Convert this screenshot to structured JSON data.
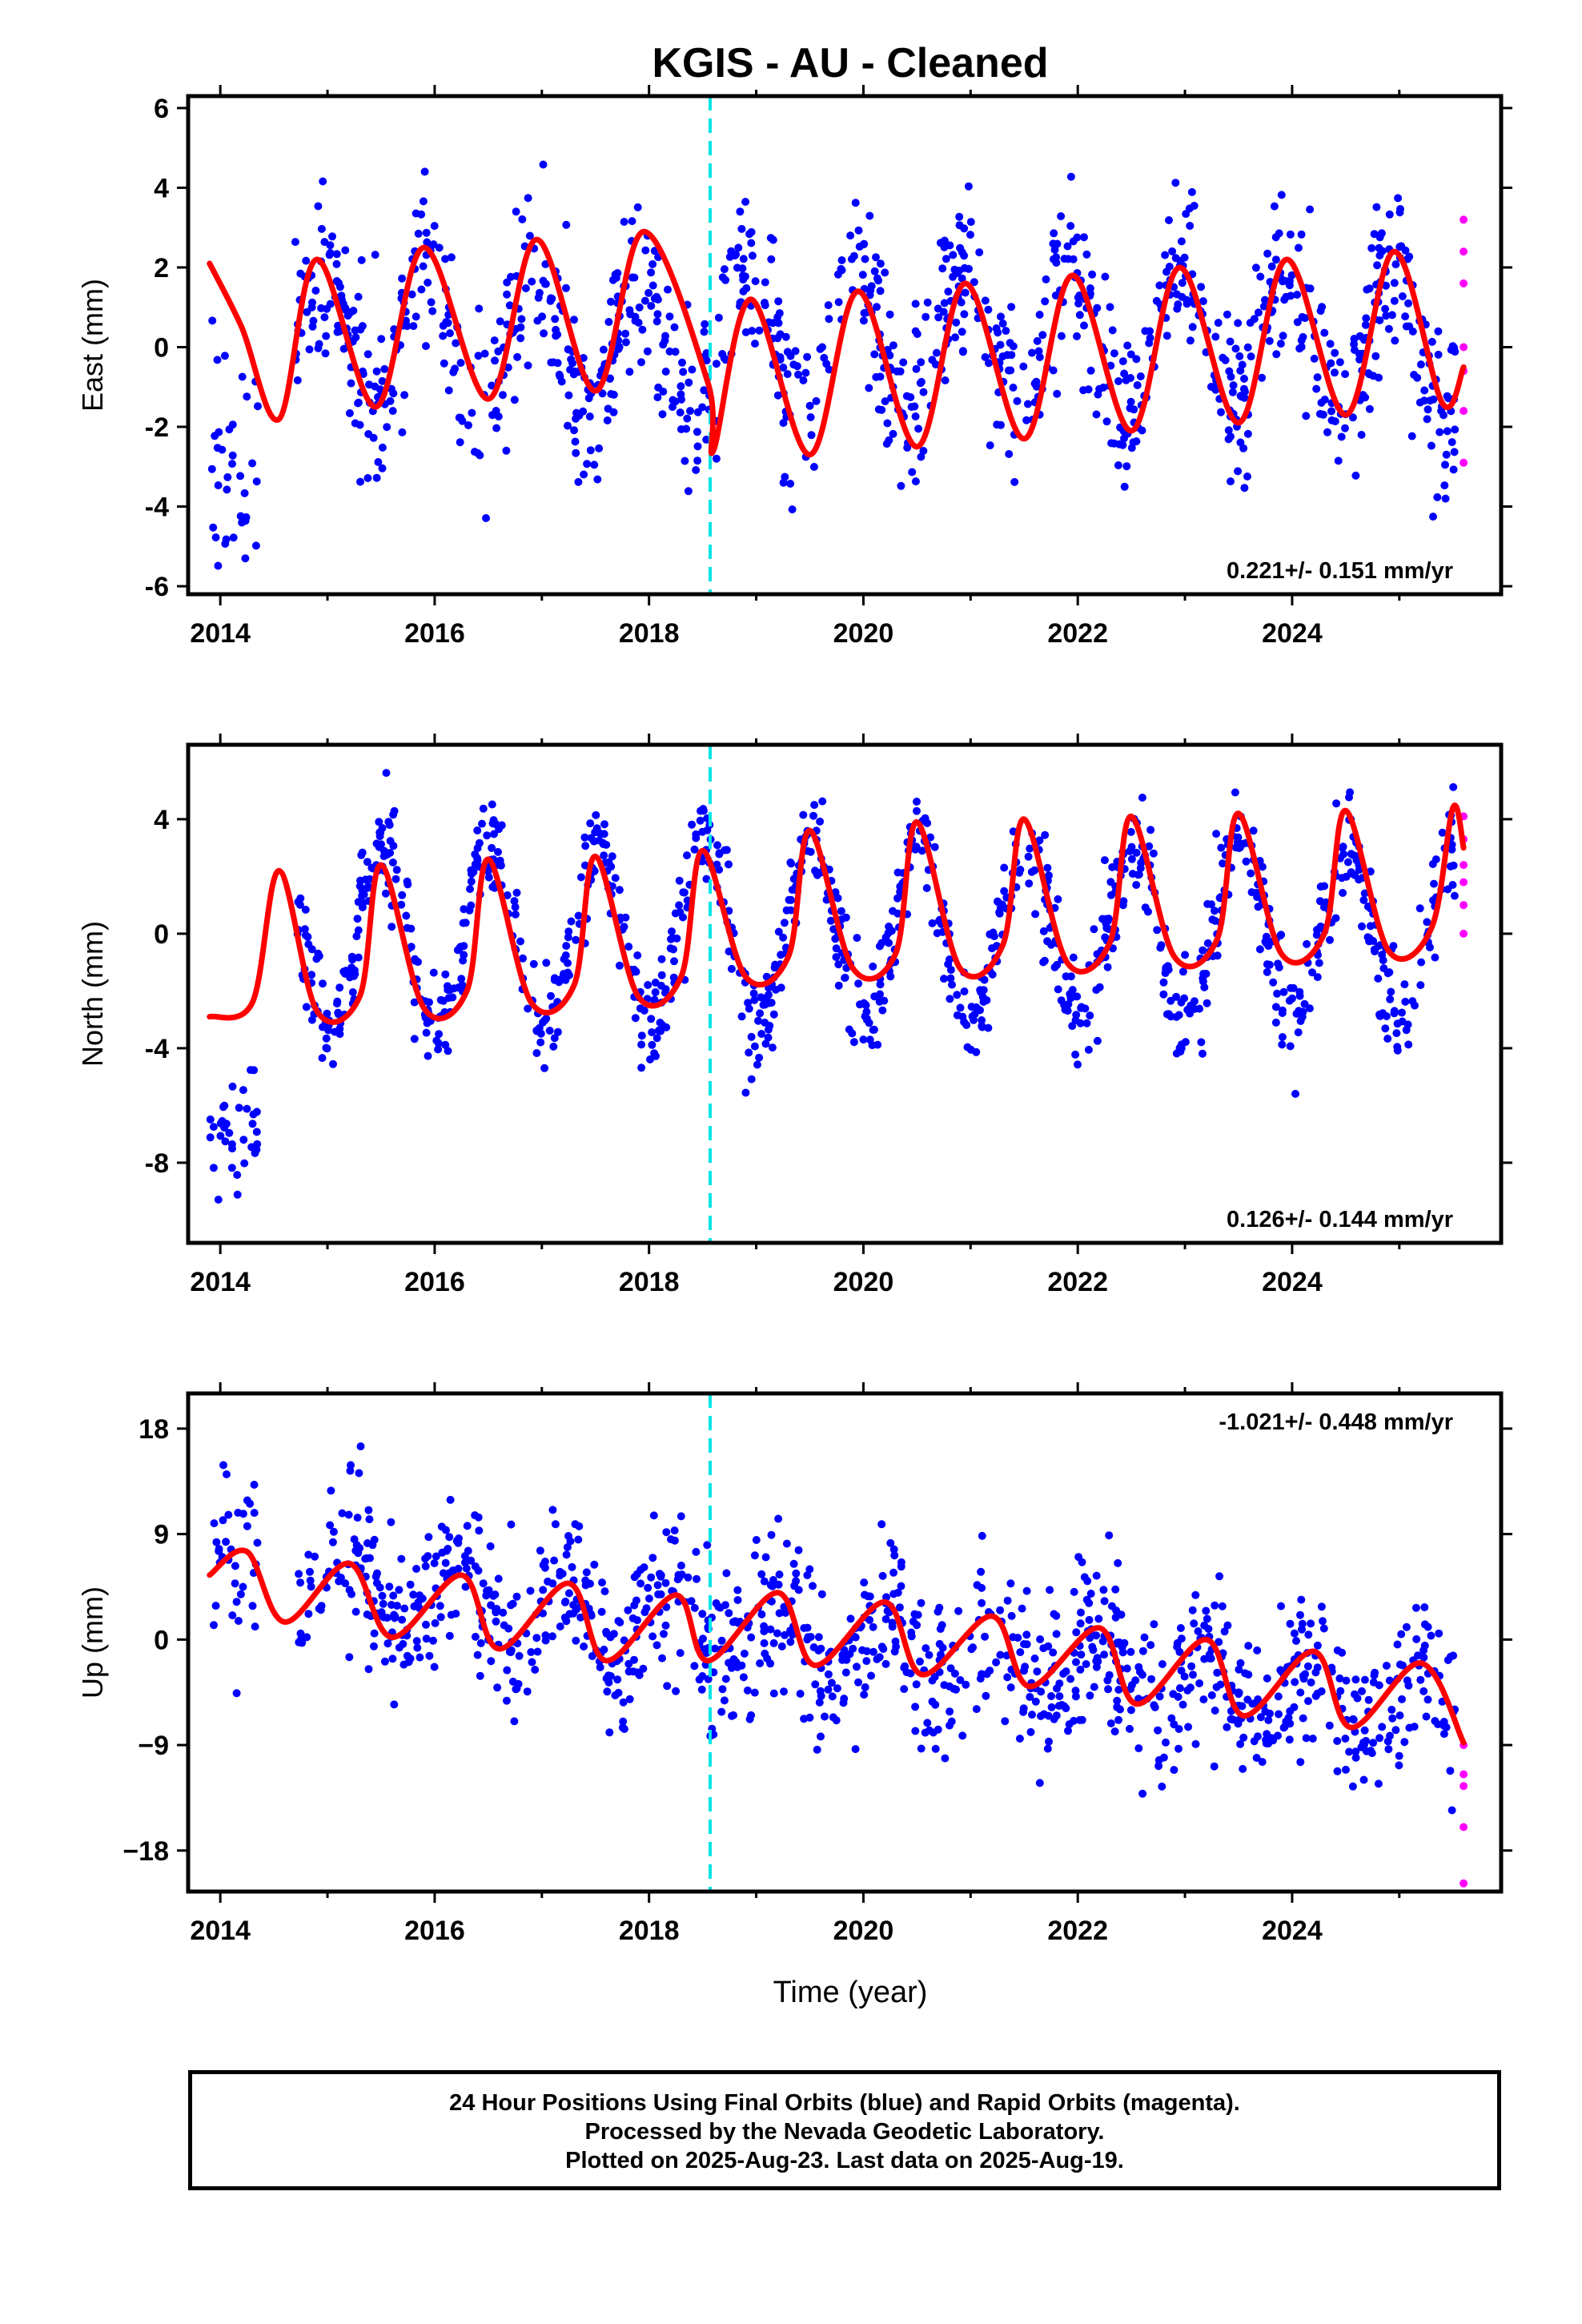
{
  "title": "KGIS  - AU - Cleaned",
  "xlabel": "Time (year)",
  "colors": {
    "final_orbits": "#0000ff",
    "rapid_orbits": "#ff00ff",
    "model_fit": "#ff0000",
    "event_line": "#00e5e5"
  },
  "caption": {
    "line1": "24 Hour Positions Using Final Orbits (blue) and Rapid Orbits (magenta).",
    "line2": "Processed by the Nevada Geodetic Laboratory.",
    "line3": "Plotted on 2025-Aug-23. Last data on 2025-Aug-19."
  },
  "chart_data": [
    {
      "type": "scatter",
      "component": "East",
      "ylabel": "East (mm)",
      "xlim": [
        2013.7,
        2025.95
      ],
      "ylim": [
        -6.2,
        6.3
      ],
      "xticks": [
        2014,
        2016,
        2018,
        2020,
        2022,
        2024
      ],
      "yticks": [
        -6,
        -4,
        -2,
        0,
        2,
        4,
        6
      ],
      "velocity": "0.221+/- 0.151 mm/yr",
      "velocity_position": "bottom-right",
      "event_line_x": 2018.57,
      "fit": {
        "x": [
          2013.9,
          2014.2,
          2014.55,
          2014.9,
          2015.45,
          2015.9,
          2016.5,
          2016.95,
          2017.5,
          2017.95,
          2018.55,
          2018.6,
          2018.95,
          2019.5,
          2019.95,
          2020.5,
          2020.95,
          2021.5,
          2021.95,
          2022.5,
          2022.95,
          2023.5,
          2023.95,
          2024.5,
          2024.95,
          2025.4,
          2025.6
        ],
        "y": [
          2.1,
          0.5,
          -1.8,
          2.2,
          -1.5,
          2.5,
          -1.3,
          2.7,
          -1.1,
          2.9,
          -0.9,
          -2.6,
          1.2,
          -2.7,
          1.4,
          -2.5,
          1.6,
          -2.3,
          1.8,
          -2.1,
          2.0,
          -1.9,
          2.2,
          -1.7,
          2.4,
          -1.4,
          -0.5
        ]
      },
      "scatter_model": {
        "start": 2014.7,
        "end": 2025.52,
        "n": 1100,
        "amp": 1.8,
        "spread": 1.1,
        "offset": 0.2,
        "phase_peak": 0.93,
        "seed": 11
      },
      "early_points": {
        "start": 2013.9,
        "end": 2014.35,
        "mean": -2.6,
        "spread": 1.6,
        "n": 35
      },
      "rapid_points": {
        "x": 2025.6,
        "y": [
          3.2,
          2.4,
          1.6,
          0.0,
          -0.6,
          -1.6,
          -2.9
        ]
      }
    },
    {
      "type": "scatter",
      "component": "North",
      "ylabel": "North (mm)",
      "xlim": [
        2013.7,
        2025.95
      ],
      "ylim": [
        -10.8,
        6.6
      ],
      "xticks": [
        2014,
        2016,
        2018,
        2020,
        2022,
        2024
      ],
      "yticks": [
        -8,
        -4,
        0,
        4
      ],
      "velocity": "0.126+/- 0.144 mm/yr",
      "velocity_position": "bottom-right",
      "event_line_x": 2018.57,
      "fit": {
        "x": [
          2013.9,
          2014.3,
          2014.55,
          2014.9,
          2015.3,
          2015.5,
          2015.9,
          2016.3,
          2016.5,
          2016.9,
          2017.3,
          2017.5,
          2017.9,
          2018.3,
          2018.5,
          2018.9,
          2019.3,
          2019.5,
          2019.9,
          2020.3,
          2020.5,
          2020.9,
          2021.3,
          2021.5,
          2021.9,
          2022.3,
          2022.5,
          2022.9,
          2023.3,
          2023.5,
          2023.9,
          2024.3,
          2024.5,
          2024.9,
          2025.3,
          2025.5,
          2025.6
        ],
        "y": [
          -2.9,
          -2.4,
          2.2,
          -2.7,
          -2.2,
          2.4,
          -2.6,
          -2.0,
          2.6,
          -2.4,
          -1.8,
          2.7,
          -2.2,
          -1.5,
          2.9,
          -1.5,
          -0.8,
          3.6,
          -1.2,
          -0.7,
          3.9,
          -1.2,
          -0.4,
          4.0,
          -1.0,
          -0.3,
          4.1,
          -0.8,
          -0.2,
          4.2,
          -0.7,
          0.0,
          4.3,
          -0.6,
          0.2,
          4.4,
          3.0
        ]
      },
      "scatter_model": {
        "start": 2014.7,
        "end": 2025.52,
        "n": 1100,
        "amp": 3.1,
        "spread": 0.9,
        "offset": 0.0,
        "phase_peak": 0.52,
        "seed": 23
      },
      "early_points": {
        "start": 2013.9,
        "end": 2014.35,
        "mean": -6.8,
        "spread": 1.3,
        "n": 35
      },
      "rapid_points": {
        "x": 2025.6,
        "y": [
          4.1,
          3.3,
          2.4,
          1.8,
          1.0,
          0.0
        ]
      }
    },
    {
      "type": "scatter",
      "component": "Up",
      "ylabel": "Up (mm)",
      "xlim": [
        2013.7,
        2025.95
      ],
      "ylim": [
        -21.5,
        21.0
      ],
      "xticks": [
        2014,
        2016,
        2018,
        2020,
        2022,
        2024
      ],
      "yticks": [
        -18,
        -9,
        0,
        9,
        18
      ],
      "ytick_labels": [
        "−18",
        "−9",
        "0",
        "9",
        "18"
      ],
      "velocity": "-1.021+/- 0.448 mm/yr",
      "velocity_position": "top-right",
      "event_line_x": 2018.57,
      "fit": {
        "x": [
          2013.9,
          2014.25,
          2014.6,
          2015.2,
          2015.6,
          2016.25,
          2016.6,
          2017.25,
          2017.6,
          2018.25,
          2018.55,
          2019.2,
          2019.55,
          2020.2,
          2020.55,
          2021.2,
          2021.55,
          2022.2,
          2022.55,
          2023.2,
          2023.55,
          2024.2,
          2024.55,
          2025.2,
          2025.6
        ],
        "y": [
          5.5,
          7.5,
          1.5,
          6.5,
          0.2,
          5.5,
          -0.8,
          4.8,
          -1.8,
          3.8,
          -1.8,
          4.0,
          -2.2,
          3.2,
          -3.0,
          2.0,
          -4.0,
          1.0,
          -5.5,
          0.0,
          -6.5,
          -1.0,
          -7.5,
          -2.0,
          -8.8
        ]
      },
      "scatter_model": {
        "start": 2014.7,
        "end": 2025.52,
        "n": 1100,
        "amp": 3.0,
        "spread": 3.3,
        "offset": 5.0,
        "trend": -1.0,
        "phase_peak": 0.2,
        "seed": 37
      },
      "early_points": {
        "start": 2013.9,
        "end": 2014.35,
        "mean": 7.0,
        "spread": 4.5,
        "n": 35
      },
      "rapid_points": {
        "x": 2025.6,
        "y": [
          -9.0,
          -11.5,
          -12.5,
          -16.0,
          -20.8
        ]
      }
    }
  ]
}
